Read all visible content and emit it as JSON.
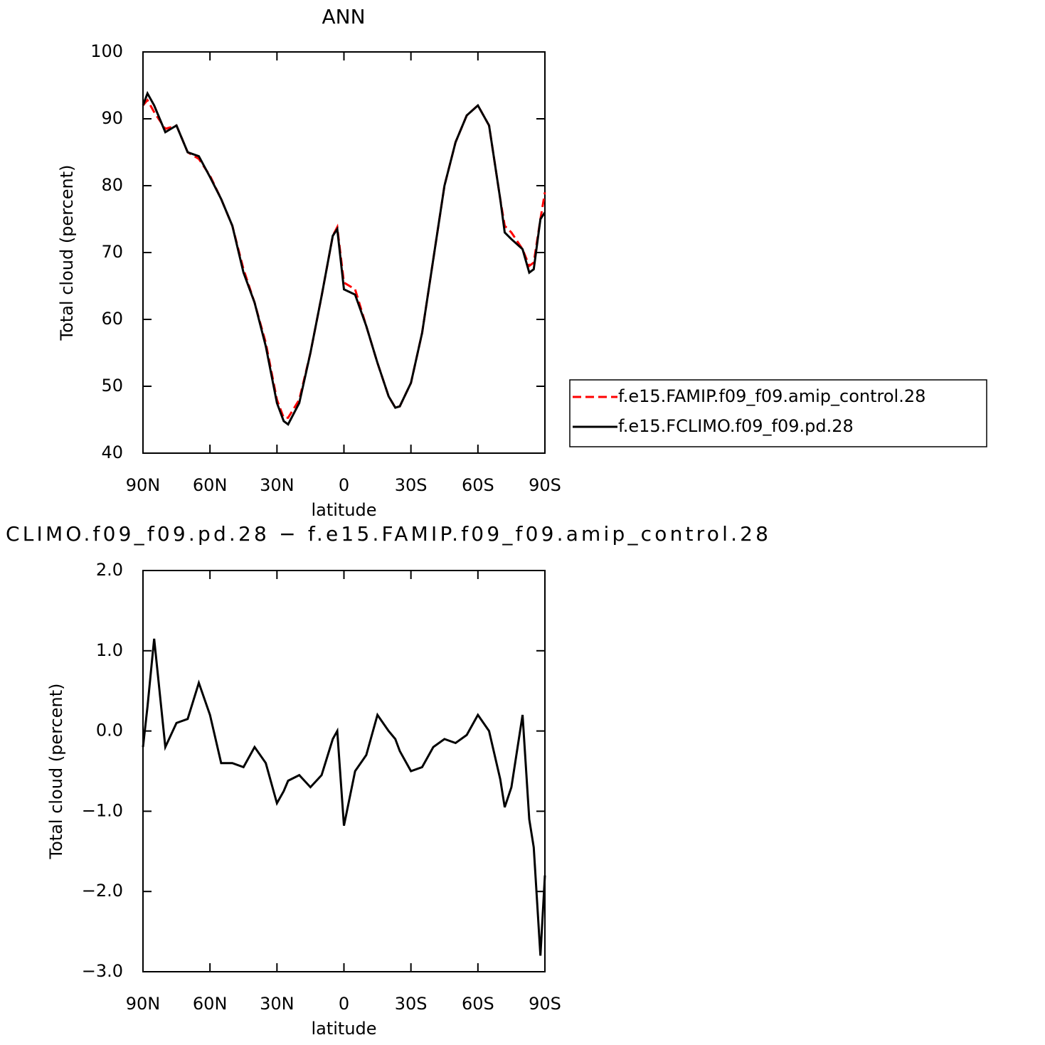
{
  "chart_data": [
    {
      "type": "line",
      "title": "ANN",
      "xlabel": "latitude",
      "ylabel": "Total cloud (percent)",
      "x": [
        90,
        88,
        85,
        80,
        75,
        70,
        65,
        60,
        55,
        50,
        45,
        40,
        35,
        30,
        27,
        25,
        20,
        15,
        10,
        5,
        3,
        0,
        -5,
        -10,
        -15,
        -20,
        -23,
        -25,
        -30,
        -35,
        -40,
        -45,
        -50,
        -55,
        -60,
        -65,
        -70,
        -72,
        -75,
        -80,
        -83,
        -85,
        -88,
        -90
      ],
      "xlim": [
        90,
        -90
      ],
      "xticks": [
        {
          "value": 90,
          "label": "90N"
        },
        {
          "value": 60,
          "label": "60N"
        },
        {
          "value": 30,
          "label": "30N"
        },
        0,
        {
          "value": -30,
          "label": "30S"
        },
        {
          "value": -60,
          "label": "60S"
        },
        {
          "value": -90,
          "label": "90S"
        }
      ],
      "ylim": [
        40,
        100
      ],
      "yticks": [
        40,
        50,
        60,
        70,
        80,
        90,
        100
      ],
      "legend": "right",
      "series": [
        {
          "name": "f.e15.FAMIP.f09_f09.amip_control.28",
          "color": "#ff0000",
          "dashed": true,
          "values": [
            92,
            92.8,
            91,
            88.5,
            89,
            85,
            84,
            81.5,
            78,
            74,
            67.5,
            62.5,
            56.5,
            48,
            45.3,
            45.3,
            48,
            55,
            63.5,
            72.5,
            73.8,
            65.5,
            64.5,
            59,
            53.5,
            48.5,
            46.8,
            47,
            50.5,
            58,
            69,
            80,
            86.5,
            90.5,
            92,
            89,
            78,
            74,
            73,
            70.5,
            68,
            68.5,
            75,
            79
          ]
        },
        {
          "name": "f.e15.FCLIMO.f09_f09.pd.28",
          "color": "#000000",
          "dashed": false,
          "values": [
            92,
            93.8,
            92,
            88,
            89,
            85,
            84.4,
            81.3,
            78,
            74,
            67,
            62.5,
            56,
            47.5,
            44.8,
            44.3,
            47.5,
            55,
            63.5,
            72.5,
            73.5,
            64.5,
            63.7,
            59,
            53.5,
            48.5,
            46.8,
            47,
            50.5,
            58,
            69,
            80,
            86.5,
            90.5,
            92,
            89,
            78,
            73,
            72,
            70.5,
            67,
            67.5,
            75,
            76
          ]
        }
      ]
    },
    {
      "type": "line",
      "title": "CLIMO.f09_f09.pd.28 − f.e15.FAMIP.f09_f09.amip_control.28",
      "xlabel": "latitude",
      "ylabel": "Total cloud (percent)",
      "x": [
        90,
        88,
        85,
        80,
        75,
        70,
        65,
        60,
        55,
        50,
        45,
        40,
        35,
        30,
        27,
        25,
        20,
        15,
        10,
        5,
        3,
        0,
        -5,
        -10,
        -15,
        -20,
        -23,
        -25,
        -30,
        -35,
        -40,
        -45,
        -50,
        -55,
        -60,
        -65,
        -70,
        -72,
        -75,
        -80,
        -83,
        -85,
        -88,
        -90
      ],
      "xlim": [
        90,
        -90
      ],
      "xticks": [
        {
          "value": 90,
          "label": "90N"
        },
        {
          "value": 60,
          "label": "60N"
        },
        {
          "value": 30,
          "label": "30N"
        },
        0,
        {
          "value": -30,
          "label": "30S"
        },
        {
          "value": -60,
          "label": "60S"
        },
        {
          "value": -90,
          "label": "90S"
        }
      ],
      "ylim": [
        -3,
        2
      ],
      "yticks": [
        {
          "value": -3,
          "label": "−3.0"
        },
        {
          "value": -2,
          "label": "−2.0"
        },
        {
          "value": -1,
          "label": "−1.0"
        },
        {
          "value": 0,
          "label": "0.0"
        },
        {
          "value": 1,
          "label": "1.0"
        },
        {
          "value": 2,
          "label": "2.0"
        }
      ],
      "color": "#000000",
      "values": [
        -0.2,
        0.3,
        1.15,
        -0.2,
        0.1,
        0.15,
        0.6,
        0.2,
        -0.4,
        -0.4,
        -0.45,
        -0.2,
        -0.4,
        -0.9,
        -0.75,
        -0.62,
        -0.55,
        -0.7,
        -0.55,
        -0.1,
        0.0,
        -1.18,
        -0.5,
        -0.3,
        0.2,
        0.0,
        -0.1,
        -0.25,
        -0.5,
        -0.45,
        -0.2,
        -0.1,
        -0.15,
        -0.05,
        0.2,
        0.0,
        -0.6,
        -0.95,
        -0.7,
        0.2,
        -1.1,
        -1.45,
        -2.8,
        -1.8
      ]
    }
  ]
}
